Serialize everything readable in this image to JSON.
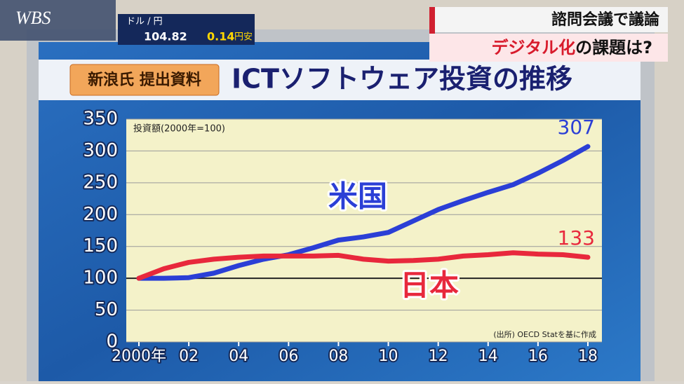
{
  "broadcast": {
    "logo": "WBS",
    "fx_pair": "ドル / 円",
    "fx_rate": "104.82",
    "fx_change": "0.14",
    "fx_change_unit": "円安",
    "headline": "諮問会議で議論",
    "subheadline": [
      "デジタル化",
      "の課題は?"
    ]
  },
  "panel": {
    "tag": "新浪氏 提出資料"
  },
  "chart_data": {
    "type": "line",
    "title": "ICTソフトウェア投資の推移",
    "ylabel": "投資額(2000年=100)",
    "source": "(出所) OECD Statを基に作成",
    "x": [
      2000,
      2001,
      2002,
      2003,
      2004,
      2005,
      2006,
      2007,
      2008,
      2009,
      2010,
      2011,
      2012,
      2013,
      2014,
      2015,
      2016,
      2017,
      2018
    ],
    "series": [
      {
        "name": "米国",
        "color": "#2b3fd6",
        "end_label": "307",
        "values": [
          100,
          100,
          101,
          108,
          120,
          130,
          137,
          148,
          160,
          165,
          172,
          190,
          208,
          222,
          235,
          247,
          265,
          285,
          307
        ]
      },
      {
        "name": "日本",
        "color": "#e8283c",
        "end_label": "133",
        "values": [
          100,
          115,
          125,
          130,
          133,
          135,
          135,
          135,
          136,
          130,
          127,
          128,
          130,
          135,
          137,
          140,
          138,
          137,
          133
        ]
      }
    ],
    "xlim": [
      2000,
      2018
    ],
    "xticks": [
      {
        "value": 2000,
        "label": "2000年"
      },
      {
        "value": 2002,
        "label": "02"
      },
      {
        "value": 2004,
        "label": "04"
      },
      {
        "value": 2006,
        "label": "06"
      },
      {
        "value": 2008,
        "label": "08"
      },
      {
        "value": 2010,
        "label": "10"
      },
      {
        "value": 2012,
        "label": "12"
      },
      {
        "value": 2014,
        "label": "14"
      },
      {
        "value": 2016,
        "label": "16"
      },
      {
        "value": 2018,
        "label": "18"
      }
    ],
    "ylim": [
      0,
      350
    ],
    "yticks": [
      0,
      50,
      100,
      150,
      200,
      250,
      300,
      350
    ],
    "baseline": 100,
    "grid": true
  }
}
